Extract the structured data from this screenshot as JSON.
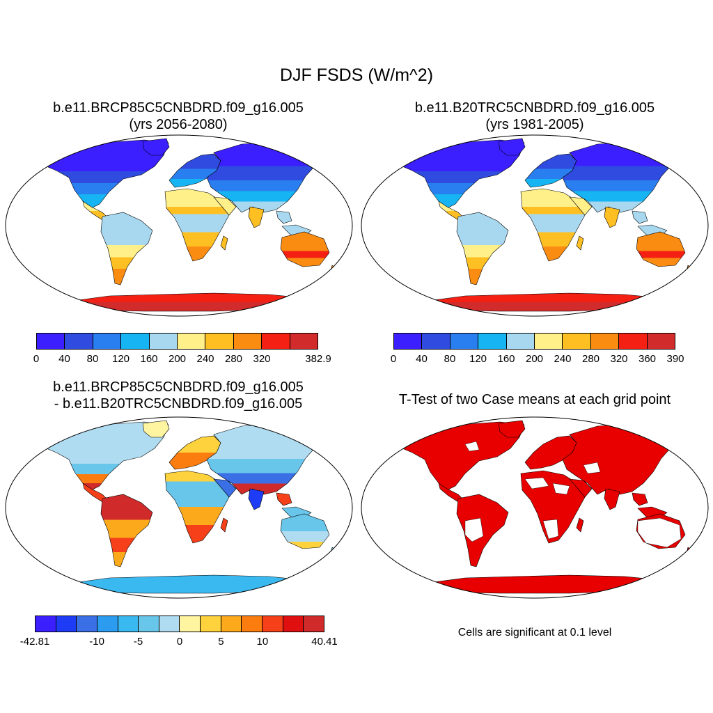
{
  "figure": {
    "title": "DJF FSDS (W/m^2)",
    "panels": [
      {
        "id": "future",
        "title_line1": "b.e11.BRCP85C5CNBDRD.f09_g16.005",
        "title_line2": "(yrs 2056-2080)",
        "colorbar": {
          "colors": [
            "#3b1fff",
            "#2f4be0",
            "#2a7ff0",
            "#16b4f2",
            "#a8d8f0",
            "#fff08a",
            "#fdbf22",
            "#fb8c12",
            "#f52014",
            "#d12b2b"
          ],
          "labels": [
            "0",
            "40",
            "80",
            "120",
            "160",
            "200",
            "240",
            "280",
            "320",
            "382.9"
          ]
        }
      },
      {
        "id": "present",
        "title_line1": "b.e11.B20TRC5CNBDRD.f09_g16.005",
        "title_line2": "(yrs 1981-2005)",
        "colorbar": {
          "colors": [
            "#3b1fff",
            "#2f4be0",
            "#2a7ff0",
            "#16b4f2",
            "#a8d8f0",
            "#fff08a",
            "#fdbf22",
            "#fb8c12",
            "#f52014",
            "#d12b2b"
          ],
          "labels": [
            "0",
            "40",
            "80",
            "120",
            "160",
            "200",
            "240",
            "280",
            "320",
            "360",
            "390"
          ]
        }
      },
      {
        "id": "difference",
        "title_line1": "b.e11.BRCP85C5CNBDRD.f09_g16.005",
        "title_line2": "- b.e11.B20TRC5CNBDRD.f09_g16.005",
        "colorbar": {
          "colors": [
            "#3b1fff",
            "#1e3cf5",
            "#3a6fe6",
            "#2b9cf0",
            "#3ab8f0",
            "#68c6ea",
            "#b0dcf2",
            "#fff4a0",
            "#fdd23c",
            "#fcaa1c",
            "#fb7d10",
            "#f5401a",
            "#e01010",
            "#d02a2a"
          ],
          "labels": [
            "-42.81",
            "-10",
            "-5",
            "0",
            "5",
            "10",
            "40.41"
          ]
        }
      },
      {
        "id": "ttest",
        "title_line1": "T-Test of two Case means at each grid point",
        "note": "Cells are significant at 0.1 level",
        "significant_color": "#e80000"
      }
    ]
  }
}
